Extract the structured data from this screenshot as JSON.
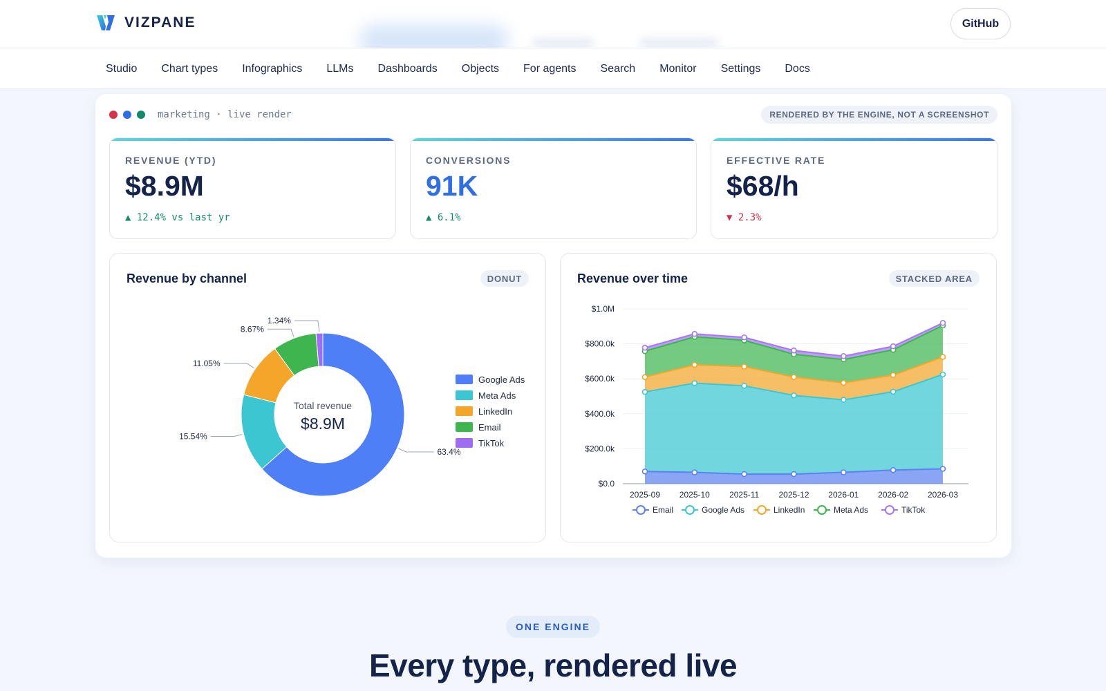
{
  "header": {
    "brand": "VIZPANE",
    "github_label": "GitHub",
    "nav": [
      "Studio",
      "Chart types",
      "Infographics",
      "LLMs",
      "Dashboards",
      "Objects",
      "For agents",
      "Search",
      "Monitor",
      "Settings",
      "Docs"
    ]
  },
  "preview": {
    "window_dots": [
      "#d9324b",
      "#2f6fe3",
      "#128a6a"
    ],
    "label": "marketing · live render",
    "badge": "RENDERED BY THE ENGINE, NOT A SCREENSHOT",
    "kpis": [
      {
        "label": "REVENUE (YTD)",
        "value": "$8.9M",
        "delta": "▲ 12.4% vs last yr",
        "direction": "up",
        "value_color": "#14234a"
      },
      {
        "label": "CONVERSIONS",
        "value": "91K",
        "delta": "▲ 6.1%",
        "direction": "up",
        "value_color": "#2f6fe3"
      },
      {
        "label": "EFFECTIVE RATE",
        "value": "$68/h",
        "delta": "▼ 2.3%",
        "direction": "down",
        "value_color": "#14234a"
      }
    ],
    "panels": {
      "donut": {
        "title": "Revenue by channel",
        "tag": "DONUT"
      },
      "area": {
        "title": "Revenue over time",
        "tag": "STACKED AREA"
      }
    }
  },
  "chart_data": [
    {
      "type": "pie",
      "title": "Revenue by channel",
      "center_label": "Total revenue",
      "center_value": "$8.9M",
      "categories": [
        "Google Ads",
        "Meta Ads",
        "LinkedIn",
        "Email",
        "TikTok"
      ],
      "values": [
        63.4,
        15.54,
        11.05,
        8.67,
        1.34
      ],
      "value_labels": [
        "63.4%",
        "15.54%",
        "11.05%",
        "8.67%",
        "1.34%"
      ],
      "colors": [
        "#4f7ff7",
        "#3cc6d2",
        "#f4a62a",
        "#3fb54f",
        "#9f6df2"
      ],
      "legend_position": "right"
    },
    {
      "type": "area",
      "stacked": true,
      "title": "Revenue over time",
      "x": [
        "2025-09",
        "2025-10",
        "2025-11",
        "2025-12",
        "2026-01",
        "2026-02",
        "2026-03"
      ],
      "y_ticks": [
        "$0.0",
        "$200.0k",
        "$400.0k",
        "$600.0k",
        "$800.0k",
        "$1.0M"
      ],
      "ylim": [
        0,
        1000000
      ],
      "grid": true,
      "legend_position": "bottom",
      "series": [
        {
          "name": "Email",
          "color": "#5b82f0",
          "values": [
            70000,
            65000,
            55000,
            55000,
            65000,
            78000,
            85000
          ]
        },
        {
          "name": "Google Ads",
          "color": "#3cc6d2",
          "values": [
            455000,
            510000,
            505000,
            450000,
            415000,
            448000,
            540000
          ]
        },
        {
          "name": "LinkedIn",
          "color": "#f4a62a",
          "values": [
            85000,
            105000,
            110000,
            105000,
            97000,
            95000,
            100000
          ]
        },
        {
          "name": "Meta Ads",
          "color": "#3fb54f",
          "values": [
            148000,
            160000,
            150000,
            130000,
            133000,
            145000,
            180000
          ]
        },
        {
          "name": "TikTok",
          "color": "#a577f2",
          "values": [
            20000,
            17000,
            17000,
            22000,
            20000,
            20000,
            15000
          ]
        }
      ]
    }
  ],
  "bottom": {
    "tag": "ONE ENGINE",
    "title": "Every type, rendered live"
  }
}
